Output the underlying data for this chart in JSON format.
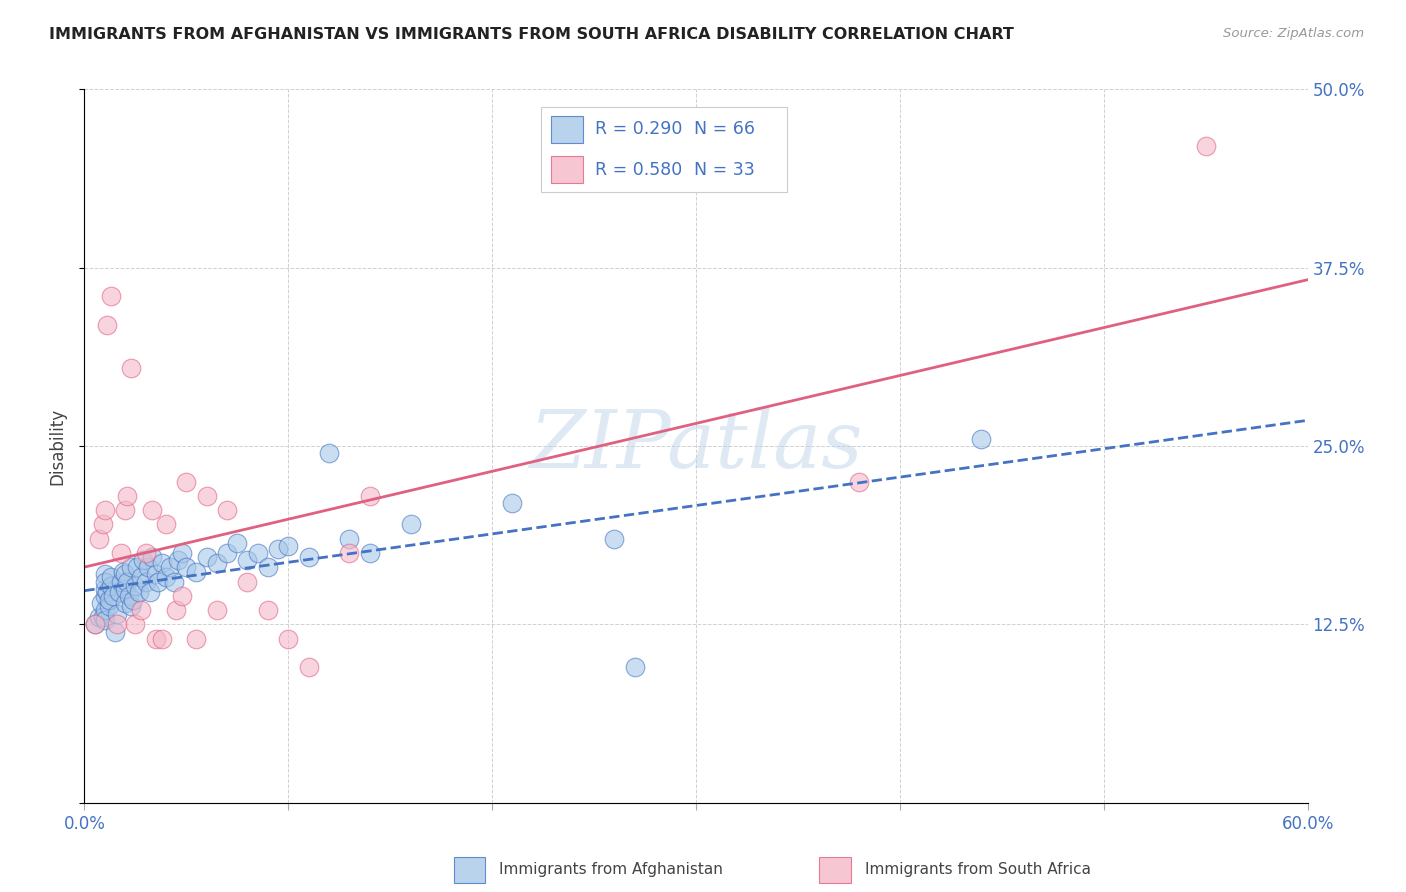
{
  "title": "IMMIGRANTS FROM AFGHANISTAN VS IMMIGRANTS FROM SOUTH AFRICA DISABILITY CORRELATION CHART",
  "source": "Source: ZipAtlas.com",
  "ylabel": "Disability",
  "xlim": [
    0.0,
    0.6
  ],
  "ylim": [
    0.0,
    0.5
  ],
  "xticks": [
    0.0,
    0.1,
    0.2,
    0.3,
    0.4,
    0.5,
    0.6
  ],
  "xtick_labels": [
    "0.0%",
    "",
    "",
    "",
    "",
    "",
    "60.0%"
  ],
  "yticks": [
    0.0,
    0.125,
    0.25,
    0.375,
    0.5
  ],
  "ytick_labels": [
    "",
    "12.5%",
    "25.0%",
    "37.5%",
    "50.0%"
  ],
  "color_afghanistan": "#a8c8e8",
  "color_south_africa": "#f4b8c8",
  "color_line_afghanistan": "#4472c4",
  "color_line_south_africa": "#e06080",
  "watermark": "ZIPatlas",
  "afghanistan_x": [
    0.005,
    0.007,
    0.008,
    0.009,
    0.01,
    0.01,
    0.01,
    0.01,
    0.01,
    0.01,
    0.011,
    0.012,
    0.012,
    0.013,
    0.013,
    0.014,
    0.015,
    0.016,
    0.017,
    0.018,
    0.019,
    0.02,
    0.02,
    0.02,
    0.021,
    0.022,
    0.023,
    0.023,
    0.024,
    0.025,
    0.026,
    0.027,
    0.028,
    0.029,
    0.03,
    0.031,
    0.032,
    0.033,
    0.035,
    0.036,
    0.038,
    0.04,
    0.042,
    0.044,
    0.046,
    0.048,
    0.05,
    0.055,
    0.06,
    0.065,
    0.07,
    0.075,
    0.08,
    0.085,
    0.09,
    0.095,
    0.1,
    0.11,
    0.12,
    0.13,
    0.14,
    0.16,
    0.21,
    0.26,
    0.27,
    0.44
  ],
  "afghanistan_y": [
    0.125,
    0.13,
    0.14,
    0.13,
    0.145,
    0.135,
    0.128,
    0.15,
    0.16,
    0.155,
    0.148,
    0.138,
    0.142,
    0.152,
    0.158,
    0.145,
    0.12,
    0.132,
    0.148,
    0.155,
    0.162,
    0.14,
    0.15,
    0.16,
    0.155,
    0.145,
    0.138,
    0.165,
    0.142,
    0.152,
    0.165,
    0.148,
    0.158,
    0.17,
    0.155,
    0.165,
    0.148,
    0.172,
    0.16,
    0.155,
    0.168,
    0.158,
    0.165,
    0.155,
    0.17,
    0.175,
    0.165,
    0.162,
    0.172,
    0.168,
    0.175,
    0.182,
    0.17,
    0.175,
    0.165,
    0.178,
    0.18,
    0.172,
    0.245,
    0.185,
    0.175,
    0.195,
    0.21,
    0.185,
    0.095,
    0.255
  ],
  "south_africa_x": [
    0.005,
    0.007,
    0.009,
    0.01,
    0.011,
    0.013,
    0.016,
    0.018,
    0.02,
    0.021,
    0.023,
    0.025,
    0.028,
    0.03,
    0.033,
    0.035,
    0.038,
    0.04,
    0.045,
    0.048,
    0.05,
    0.055,
    0.06,
    0.065,
    0.07,
    0.08,
    0.09,
    0.1,
    0.11,
    0.13,
    0.14,
    0.38,
    0.55
  ],
  "south_africa_y": [
    0.125,
    0.185,
    0.195,
    0.205,
    0.335,
    0.355,
    0.125,
    0.175,
    0.205,
    0.215,
    0.305,
    0.125,
    0.135,
    0.175,
    0.205,
    0.115,
    0.115,
    0.195,
    0.135,
    0.145,
    0.225,
    0.115,
    0.215,
    0.135,
    0.205,
    0.155,
    0.135,
    0.115,
    0.095,
    0.175,
    0.215,
    0.225,
    0.46
  ]
}
